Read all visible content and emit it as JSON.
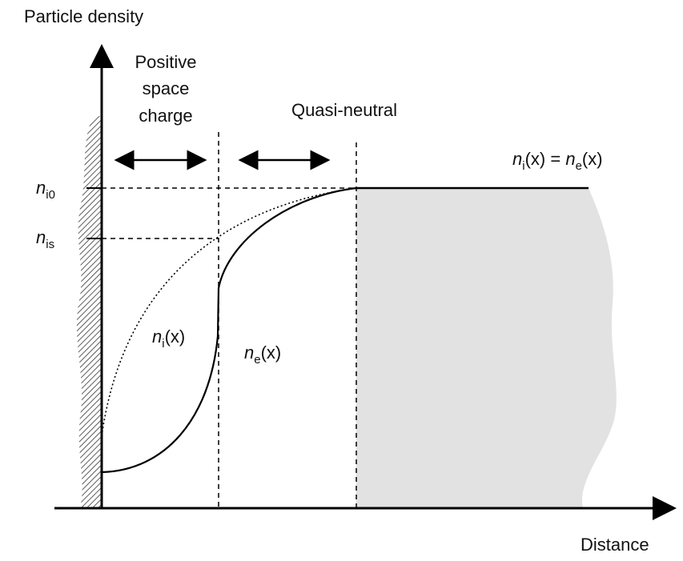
{
  "axes": {
    "y_label": "Particle density",
    "x_label": "Distance"
  },
  "regions": {
    "space_charge": [
      "Positive",
      "space",
      "charge"
    ],
    "quasi_neutral": "Quasi-neutral"
  },
  "levels": [
    {
      "base": "n",
      "sub": "i0"
    },
    {
      "base": "n",
      "sub": "is"
    }
  ],
  "curves": {
    "ion": {
      "base": "n",
      "sub": "i",
      "rest": "(x)"
    },
    "electron": {
      "base": "n",
      "sub": "e",
      "rest": "(x)"
    }
  },
  "equation": {
    "left": {
      "base": "n",
      "sub": "i",
      "rest": "(x)"
    },
    "operator": " = ",
    "right": {
      "base": "n",
      "sub": "e",
      "rest": "(x)"
    }
  }
}
